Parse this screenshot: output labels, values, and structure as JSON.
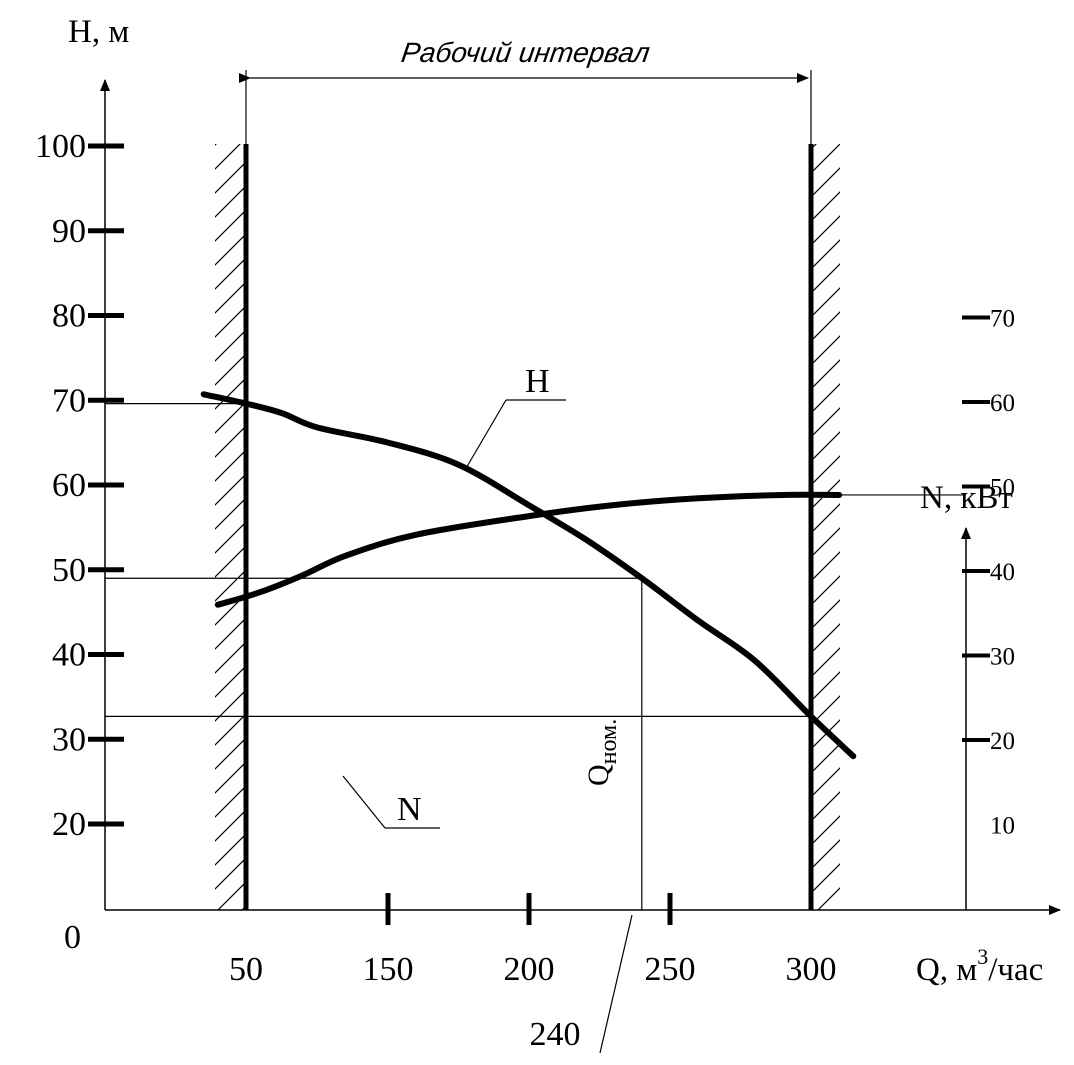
{
  "chart_data": {
    "type": "line",
    "y_axis_label": "H, м",
    "x_axis_label_main": "Q, м",
    "x_axis_label_sup": "3",
    "x_axis_label_tail": "/час",
    "right_axis_label": "N, кВт",
    "origin_label": "0",
    "working_interval_label": "Рабочий интервал",
    "q_nom_label": "Q",
    "q_nom_sub": "ном.",
    "q_nom_value_label": "240",
    "h_curve_label": "H",
    "n_curve_label": "N",
    "y_ticks": [
      {
        "value": 20,
        "label": "20"
      },
      {
        "value": 30,
        "label": "30"
      },
      {
        "value": 40,
        "label": "40"
      },
      {
        "value": 50,
        "label": "50"
      },
      {
        "value": 60,
        "label": "60"
      },
      {
        "value": 70,
        "label": "70"
      },
      {
        "value": 80,
        "label": "80"
      },
      {
        "value": 90,
        "label": "90"
      },
      {
        "value": 100,
        "label": "100"
      }
    ],
    "x_ticks": [
      {
        "value": 50,
        "label": "50"
      },
      {
        "value": 150,
        "label": "150"
      },
      {
        "value": 200,
        "label": "200"
      },
      {
        "value": 250,
        "label": "250"
      },
      {
        "value": 300,
        "label": "300"
      }
    ],
    "right_ticks": [
      {
        "value": 10,
        "label": "10"
      },
      {
        "value": 20,
        "label": "20"
      },
      {
        "value": 30,
        "label": "30"
      },
      {
        "value": 40,
        "label": "40"
      },
      {
        "value": 50,
        "label": "50"
      },
      {
        "value": 60,
        "label": "60"
      },
      {
        "value": 70,
        "label": "70"
      }
    ],
    "h_curve": [
      {
        "q": 35,
        "h": 70.7
      },
      {
        "q": 50,
        "h": 69.6
      },
      {
        "q": 75,
        "h": 68.5
      },
      {
        "q": 100,
        "h": 66.8
      },
      {
        "q": 150,
        "h": 65
      },
      {
        "q": 175,
        "h": 62.4
      },
      {
        "q": 200,
        "h": 57.6
      },
      {
        "q": 220,
        "h": 53.6
      },
      {
        "q": 240,
        "h": 49
      },
      {
        "q": 260,
        "h": 44
      },
      {
        "q": 280,
        "h": 39.3
      },
      {
        "q": 300,
        "h": 32.7
      },
      {
        "q": 315,
        "h": 28
      }
    ],
    "n_curve": [
      {
        "q": 40,
        "n": 36
      },
      {
        "q": 60,
        "n": 37.5
      },
      {
        "q": 90,
        "n": 39.5
      },
      {
        "q": 120,
        "n": 41.8
      },
      {
        "q": 160,
        "n": 44.3
      },
      {
        "q": 200,
        "n": 46.5
      },
      {
        "q": 230,
        "n": 47.8
      },
      {
        "q": 260,
        "n": 48.6
      },
      {
        "q": 290,
        "n": 49
      },
      {
        "q": 310,
        "n": 49
      }
    ],
    "working_interval": [
      50,
      300
    ],
    "q_nominal": 240,
    "h_reference_lines": [
      69.6,
      49,
      32.7
    ],
    "n_reference_line": 49
  }
}
